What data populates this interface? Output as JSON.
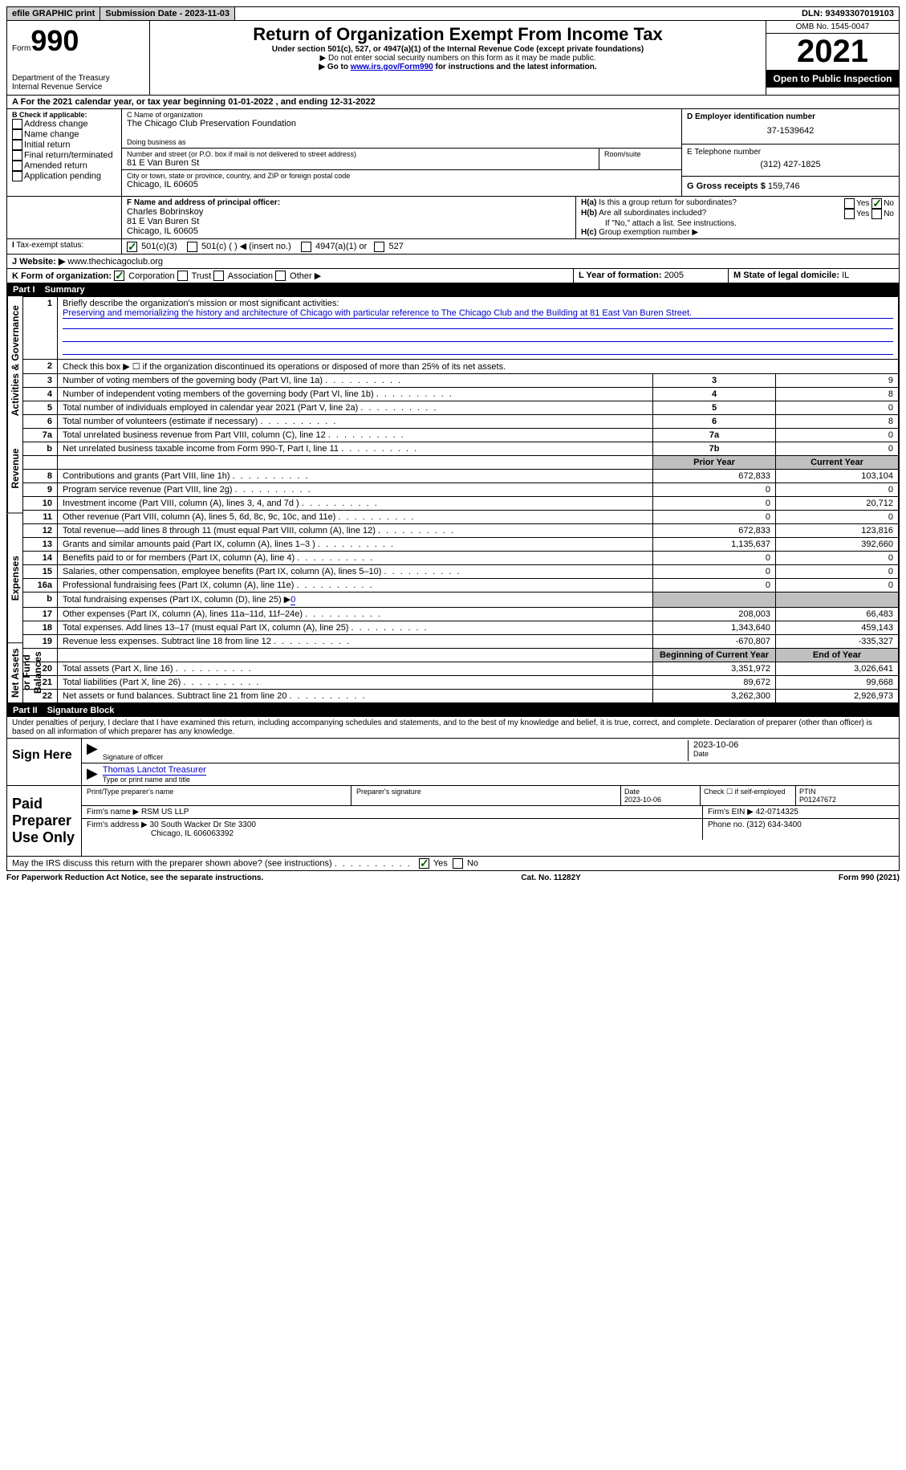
{
  "topbar": {
    "efile": "efile GRAPHIC print",
    "submission_label": "Submission Date - ",
    "submission_date": "2023-11-03",
    "dln_label": "DLN: ",
    "dln": "93493307019103"
  },
  "header": {
    "form_word": "Form",
    "form_num": "990",
    "dept": "Department of the Treasury",
    "irs": "Internal Revenue Service",
    "title": "Return of Organization Exempt From Income Tax",
    "subtitle": "Under section 501(c), 527, or 4947(a)(1) of the Internal Revenue Code (except private foundations)",
    "note1": "▶ Do not enter social security numbers on this form as it may be made public.",
    "note2_pre": "▶ Go to ",
    "note2_link": "www.irs.gov/Form990",
    "note2_post": " for instructions and the latest information.",
    "omb": "OMB No. 1545-0047",
    "year": "2021",
    "open": "Open to Public Inspection"
  },
  "periodA": {
    "text_pre": "For the 2021 calendar year, or tax year beginning ",
    "begin": "01-01-2022",
    "mid": " , and ending ",
    "end": "12-31-2022"
  },
  "boxB": {
    "label": "B Check if applicable:",
    "opts": [
      "Address change",
      "Name change",
      "Initial return",
      "Final return/terminated",
      "Amended return",
      "Application pending"
    ]
  },
  "boxC": {
    "name_label": "C Name of organization",
    "name": "The Chicago Club Preservation Foundation",
    "dba_label": "Doing business as",
    "street_label": "Number and street (or P.O. box if mail is not delivered to street address)",
    "room_label": "Room/suite",
    "street": "81 E Van Buren St",
    "city_label": "City or town, state or province, country, and ZIP or foreign postal code",
    "city": "Chicago, IL  60605"
  },
  "boxD": {
    "label": "D Employer identification number",
    "ein": "37-1539642"
  },
  "boxE": {
    "label": "E Telephone number",
    "phone": "(312) 427-1825"
  },
  "boxG": {
    "label": "G Gross receipts $ ",
    "amount": "159,746"
  },
  "boxF": {
    "label": "F Name and address of principal officer:",
    "name": "Charles Bobrinskoy",
    "addr1": "81 E Van Buren St",
    "addr2": "Chicago, IL  60605"
  },
  "boxH": {
    "a_label": "Is this a group return for subordinates?",
    "b_label": "Are all subordinates included?",
    "b_note": "If \"No,\" attach a list. See instructions.",
    "c_label": "Group exemption number ▶",
    "yes": "Yes",
    "no": "No"
  },
  "boxI": {
    "label": "Tax-exempt status:",
    "o1": "501(c)(3)",
    "o2": "501(c) (   ) ◀ (insert no.)",
    "o3": "4947(a)(1) or",
    "o4": "527"
  },
  "boxJ": {
    "label": "Website: ▶",
    "url": "www.thechicagoclub.org"
  },
  "boxK": {
    "label": "K Form of organization:",
    "o1": "Corporation",
    "o2": "Trust",
    "o3": "Association",
    "o4": "Other ▶"
  },
  "boxL": {
    "label": "L Year of formation: ",
    "val": "2005"
  },
  "boxM": {
    "label": "M State of legal domicile: ",
    "val": "IL"
  },
  "part1": {
    "header_num": "Part I",
    "header_title": "Summary",
    "vert_ag": "Activities & Governance",
    "vert_rev": "Revenue",
    "vert_exp": "Expenses",
    "vert_net": "Net Assets or Fund Balances",
    "line1_label": "Briefly describe the organization's mission or most significant activities:",
    "line1_text": "Preserving and memorializing the history and architecture of Chicago with particular reference to The Chicago Club and the Building at 81 East Van Buren Street.",
    "line2": "Check this box ▶ ☐ if the organization discontinued its operations or disposed of more than 25% of its net assets.",
    "rows_ag": [
      {
        "n": "3",
        "label": "Number of voting members of the governing body (Part VI, line 1a)",
        "box": "3",
        "val": "9"
      },
      {
        "n": "4",
        "label": "Number of independent voting members of the governing body (Part VI, line 1b)",
        "box": "4",
        "val": "8"
      },
      {
        "n": "5",
        "label": "Total number of individuals employed in calendar year 2021 (Part V, line 2a)",
        "box": "5",
        "val": "0"
      },
      {
        "n": "6",
        "label": "Total number of volunteers (estimate if necessary)",
        "box": "6",
        "val": "8"
      },
      {
        "n": "7a",
        "label": "Total unrelated business revenue from Part VIII, column (C), line 12",
        "box": "7a",
        "val": "0"
      },
      {
        "n": "b",
        "label": "Net unrelated business taxable income from Form 990-T, Part I, line 11",
        "box": "7b",
        "val": "0"
      }
    ],
    "col_prior": "Prior Year",
    "col_current": "Current Year",
    "rows_rev": [
      {
        "n": "8",
        "label": "Contributions and grants (Part VIII, line 1h)",
        "p": "672,833",
        "c": "103,104"
      },
      {
        "n": "9",
        "label": "Program service revenue (Part VIII, line 2g)",
        "p": "0",
        "c": "0"
      },
      {
        "n": "10",
        "label": "Investment income (Part VIII, column (A), lines 3, 4, and 7d )",
        "p": "0",
        "c": "20,712"
      },
      {
        "n": "11",
        "label": "Other revenue (Part VIII, column (A), lines 5, 6d, 8c, 9c, 10c, and 11e)",
        "p": "0",
        "c": "0"
      },
      {
        "n": "12",
        "label": "Total revenue—add lines 8 through 11 (must equal Part VIII, column (A), line 12)",
        "p": "672,833",
        "c": "123,816"
      }
    ],
    "rows_exp": [
      {
        "n": "13",
        "label": "Grants and similar amounts paid (Part IX, column (A), lines 1–3 )",
        "p": "1,135,637",
        "c": "392,660"
      },
      {
        "n": "14",
        "label": "Benefits paid to or for members (Part IX, column (A), line 4)",
        "p": "0",
        "c": "0"
      },
      {
        "n": "15",
        "label": "Salaries, other compensation, employee benefits (Part IX, column (A), lines 5–10)",
        "p": "0",
        "c": "0"
      },
      {
        "n": "16a",
        "label": "Professional fundraising fees (Part IX, column (A), line 11e)",
        "p": "0",
        "c": "0"
      },
      {
        "n": "b",
        "label": "Total fundraising expenses (Part IX, column (D), line 25) ▶",
        "p": "GRAY",
        "c": "GRAY",
        "extra": "0"
      },
      {
        "n": "17",
        "label": "Other expenses (Part IX, column (A), lines 11a–11d, 11f–24e)",
        "p": "208,003",
        "c": "66,483"
      },
      {
        "n": "18",
        "label": "Total expenses. Add lines 13–17 (must equal Part IX, column (A), line 25)",
        "p": "1,343,640",
        "c": "459,143"
      },
      {
        "n": "19",
        "label": "Revenue less expenses. Subtract line 18 from line 12",
        "p": "-670,807",
        "c": "-335,327"
      }
    ],
    "col_begin": "Beginning of Current Year",
    "col_end": "End of Year",
    "rows_net": [
      {
        "n": "20",
        "label": "Total assets (Part X, line 16)",
        "p": "3,351,972",
        "c": "3,026,641"
      },
      {
        "n": "21",
        "label": "Total liabilities (Part X, line 26)",
        "p": "89,672",
        "c": "99,668"
      },
      {
        "n": "22",
        "label": "Net assets or fund balances. Subtract line 21 from line 20",
        "p": "3,262,300",
        "c": "2,926,973"
      }
    ]
  },
  "part2": {
    "header_num": "Part II",
    "header_title": "Signature Block",
    "declaration": "Under penalties of perjury, I declare that I have examined this return, including accompanying schedules and statements, and to the best of my knowledge and belief, it is true, correct, and complete. Declaration of preparer (other than officer) is based on all information of which preparer has any knowledge.",
    "sign_here": "Sign Here",
    "sig_officer": "Signature of officer",
    "sig_date_label": "Date",
    "sig_date": "2023-10-06",
    "officer_name": "Thomas Lanctot  Treasurer",
    "type_name": "Type or print name and title",
    "paid": "Paid Preparer Use Only",
    "prep_name_label": "Print/Type preparer's name",
    "prep_sig_label": "Preparer's signature",
    "prep_date_label": "Date",
    "prep_date": "2023-10-06",
    "self_emp": "Check ☐ if self-employed",
    "ptin_label": "PTIN",
    "ptin": "P01247672",
    "firm_name_label": "Firm's name    ▶ ",
    "firm_name": "RSM US LLP",
    "firm_ein_label": "Firm's EIN ▶ ",
    "firm_ein": "42-0714325",
    "firm_addr_label": "Firm's address ▶ ",
    "firm_addr1": "30 South Wacker Dr Ste 3300",
    "firm_addr2": "Chicago, IL  606063392",
    "firm_phone_label": "Phone no. ",
    "firm_phone": "(312) 634-3400",
    "discuss": "May the IRS discuss this return with the preparer shown above? (see instructions)"
  },
  "footer": {
    "pra": "For Paperwork Reduction Act Notice, see the separate instructions.",
    "cat": "Cat. No. 11282Y",
    "form": "Form 990 (2021)"
  }
}
